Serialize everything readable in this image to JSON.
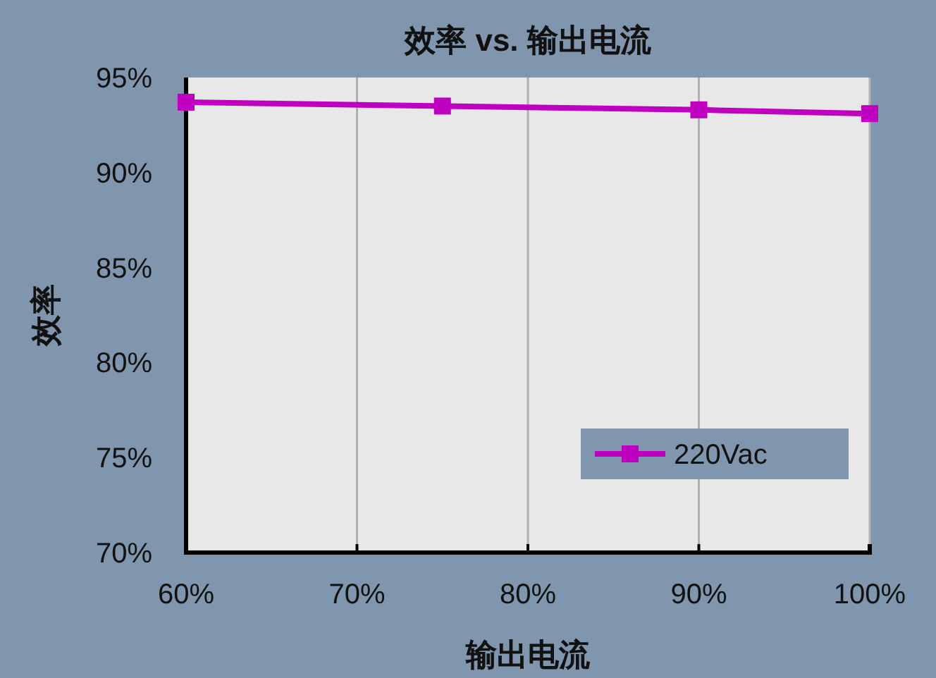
{
  "chart_data": {
    "type": "line",
    "title": "效率 vs. 输出电流",
    "xlabel": "输出电流",
    "ylabel": "效率",
    "x": [
      60,
      75,
      90,
      100
    ],
    "series": [
      {
        "name": "220Vac",
        "color": "#c000c0",
        "values": [
          93.7,
          93.5,
          93.3,
          93.1
        ]
      }
    ],
    "xlim": [
      60,
      100
    ],
    "xticks": [
      {
        "value": 60,
        "label": "60%"
      },
      {
        "value": 70,
        "label": "70%"
      },
      {
        "value": 80,
        "label": "80%"
      },
      {
        "value": 90,
        "label": "90%"
      },
      {
        "value": 100,
        "label": "100%"
      }
    ],
    "ylim": [
      70,
      95
    ],
    "yticks": [
      {
        "value": 70,
        "label": "70%"
      },
      {
        "value": 75,
        "label": "75%"
      },
      {
        "value": 80,
        "label": "80%"
      },
      {
        "value": 85,
        "label": "85%"
      },
      {
        "value": 90,
        "label": "90%"
      },
      {
        "value": 95,
        "label": "95%"
      }
    ],
    "grid": "x",
    "legend": "bottom right",
    "marker": "square",
    "line_style": "solid"
  }
}
